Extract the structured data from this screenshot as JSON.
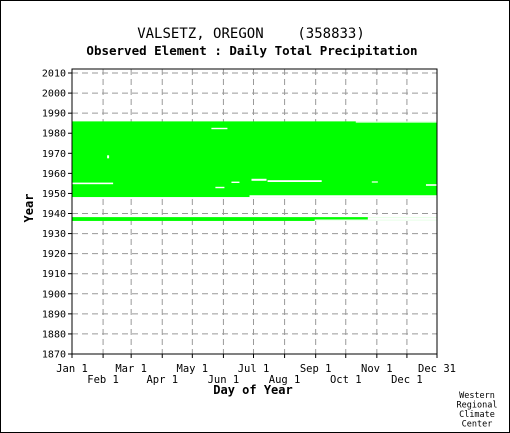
{
  "chart_data": {
    "type": "heatmap",
    "title": "VALSETZ, OREGON    (358833)",
    "subtitle": "Observed Element : Daily Total Precipitation",
    "xlabel": "Day of Year",
    "ylabel": "Year",
    "xlim": [
      1,
      365
    ],
    "ylim": [
      1870,
      2012
    ],
    "yticks": [
      1870,
      1880,
      1890,
      1900,
      1910,
      1920,
      1930,
      1940,
      1950,
      1960,
      1970,
      1980,
      1990,
      2000,
      2010
    ],
    "month_ticks_top": [
      {
        "label": "Jan 1",
        "day": 1
      },
      {
        "label": "Mar 1",
        "day": 60
      },
      {
        "label": "May 1",
        "day": 121
      },
      {
        "label": "Jul 1",
        "day": 182
      },
      {
        "label": "Sep 1",
        "day": 244
      },
      {
        "label": "Nov 1",
        "day": 305
      },
      {
        "label": "Dec 31",
        "day": 365
      }
    ],
    "month_ticks_bottom": [
      {
        "label": "Feb 1",
        "day": 32
      },
      {
        "label": "Apr 1",
        "day": 91
      },
      {
        "label": "Jun 1",
        "day": 152
      },
      {
        "label": "Aug 1",
        "day": 213
      },
      {
        "label": "Oct 1",
        "day": 274
      },
      {
        "label": "Dec 1",
        "day": 335
      }
    ],
    "grid": true,
    "data_color": "#00ff00",
    "coverage_blocks": [
      {
        "day_start": 1,
        "day_end": 365,
        "year_start": 1936.3,
        "year_end": 1938.2
      },
      {
        "day_start": 1,
        "day_end": 365,
        "year_start": 1948.2,
        "year_end": 1985.9
      }
    ],
    "missing_blocks": [
      {
        "day_start": 243,
        "day_end": 365,
        "year_start": 1936.3,
        "year_end": 1937.0
      },
      {
        "day_start": 296,
        "day_end": 365,
        "year_start": 1937.0,
        "year_end": 1938.2
      },
      {
        "day_start": 178,
        "day_end": 365,
        "year_start": 1948.2,
        "year_end": 1949.1
      },
      {
        "day_start": 1,
        "day_end": 42,
        "year_start": 1954.6,
        "year_end": 1955.4
      },
      {
        "day_start": 180,
        "day_end": 195,
        "year_start": 1956.3,
        "year_end": 1957.3
      },
      {
        "day_start": 196,
        "day_end": 250,
        "year_start": 1955.7,
        "year_end": 1956.6
      },
      {
        "day_start": 354,
        "day_end": 365,
        "year_start": 1953.8,
        "year_end": 1954.6
      },
      {
        "day_start": 300,
        "day_end": 306,
        "year_start": 1955.4,
        "year_end": 1956.0
      },
      {
        "day_start": 144,
        "day_end": 153,
        "year_start": 1952.6,
        "year_end": 1953.3
      },
      {
        "day_start": 160,
        "day_end": 168,
        "year_start": 1955.2,
        "year_end": 1955.9
      },
      {
        "day_start": 36,
        "day_end": 38,
        "year_start": 1967.5,
        "year_end": 1969.0
      },
      {
        "day_start": 140,
        "day_end": 156,
        "year_start": 1982.0,
        "year_end": 1982.7
      },
      {
        "day_start": 284,
        "day_end": 365,
        "year_start": 1985.3,
        "year_end": 1985.9
      }
    ],
    "credit": [
      "Western",
      "Regional",
      "Climate",
      "Center"
    ]
  }
}
